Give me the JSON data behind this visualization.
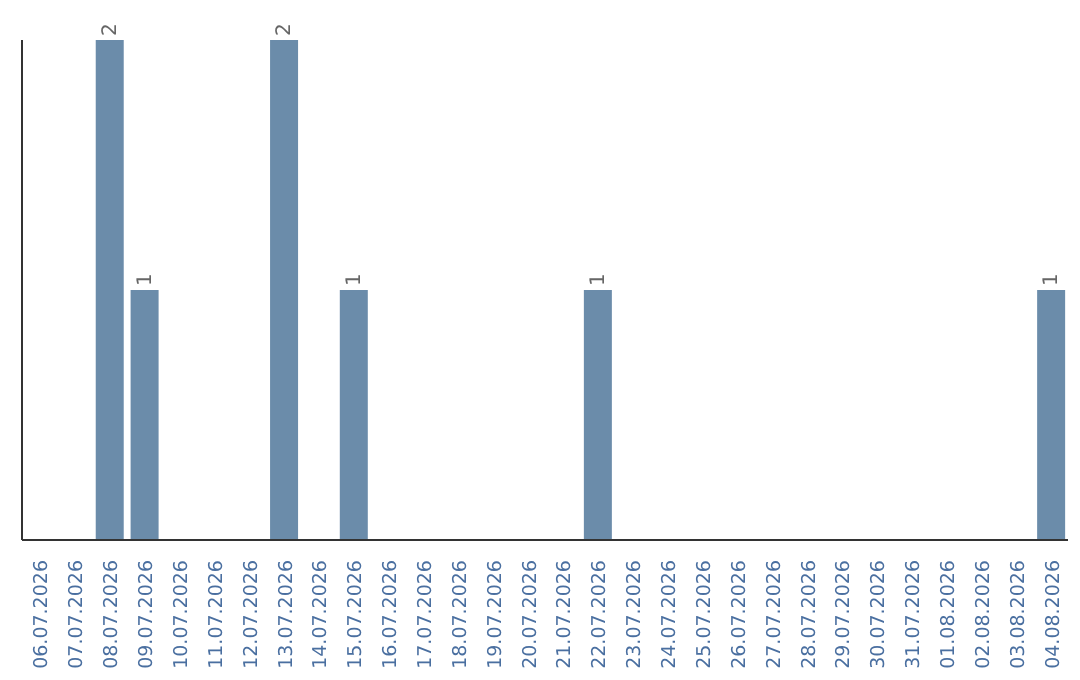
{
  "chart_data": {
    "type": "bar",
    "categories": [
      "06.07.2026",
      "07.07.2026",
      "08.07.2026",
      "09.07.2026",
      "10.07.2026",
      "11.07.2026",
      "12.07.2026",
      "13.07.2026",
      "14.07.2026",
      "15.07.2026",
      "16.07.2026",
      "17.07.2026",
      "18.07.2026",
      "19.07.2026",
      "20.07.2026",
      "21.07.2026",
      "22.07.2026",
      "23.07.2026",
      "24.07.2026",
      "25.07.2026",
      "26.07.2026",
      "27.07.2026",
      "28.07.2026",
      "29.07.2026",
      "30.07.2026",
      "31.07.2026",
      "01.08.2026",
      "02.08.2026",
      "03.08.2026",
      "04.08.2026"
    ],
    "values": [
      0,
      0,
      2,
      1,
      0,
      0,
      0,
      2,
      0,
      1,
      0,
      0,
      0,
      0,
      0,
      0,
      1,
      0,
      0,
      0,
      0,
      0,
      0,
      0,
      0,
      0,
      0,
      0,
      0,
      1
    ],
    "value_labels": [
      null,
      null,
      "2",
      "1",
      null,
      null,
      null,
      "2",
      null,
      "1",
      null,
      null,
      null,
      null,
      null,
      null,
      "1",
      null,
      null,
      null,
      null,
      null,
      null,
      null,
      null,
      null,
      null,
      null,
      null,
      "1"
    ],
    "color": "#6b8caa",
    "grid": false,
    "legend": false,
    "tick_labels": "x"
  }
}
